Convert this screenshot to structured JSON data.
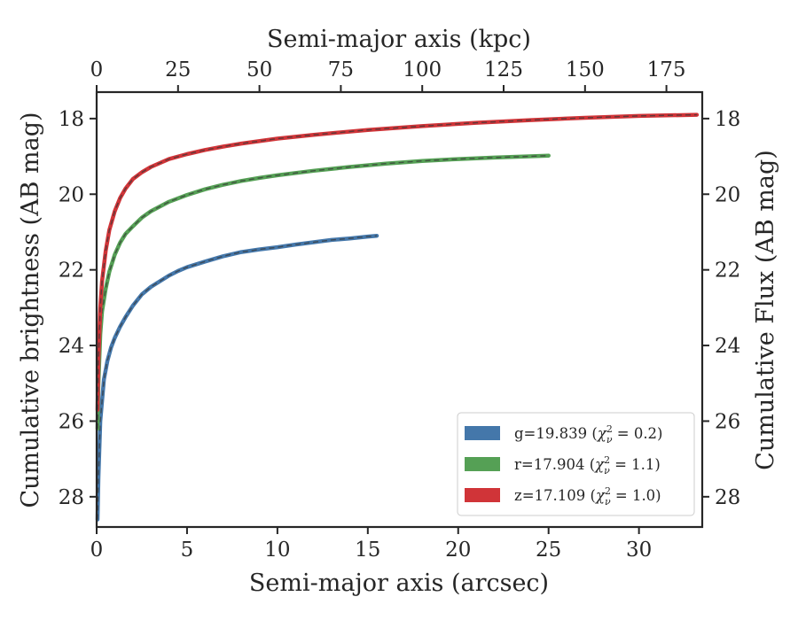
{
  "chart_data": {
    "type": "line",
    "xlabel": "Semi-major axis (arcsec)",
    "ylabel": "Cumulative brightness (AB mag)",
    "x2label": "Semi-major axis (kpc)",
    "y2label": "Cumulative Flux (AB mag)",
    "xlim": [
      0,
      33.5
    ],
    "ylim": [
      28.8,
      17.3
    ],
    "y_inverted": true,
    "x2lim": [
      0,
      186
    ],
    "xticks": [
      "0",
      "5",
      "10",
      "15",
      "20",
      "25",
      "30"
    ],
    "x2ticks": [
      "0",
      "25",
      "50",
      "75",
      "100",
      "125",
      "150",
      "175"
    ],
    "yticks": [
      "18",
      "20",
      "22",
      "24",
      "26",
      "28"
    ],
    "grid": false,
    "legend_position": "lower-right",
    "series": [
      {
        "name": "g=19.839 (χ²ν = 0.2)",
        "legend_main": "g=19.839 (",
        "legend_sup": "2",
        "legend_sub": "ν",
        "legend_tail": " = 0.2)",
        "color": "#4477aa",
        "x": [
          0.05,
          0.1,
          0.2,
          0.4,
          0.6,
          0.8,
          1,
          1.3,
          1.6,
          2,
          2.5,
          3,
          3.5,
          4,
          4.5,
          5,
          6,
          7,
          8,
          9,
          10,
          11,
          12,
          13,
          14,
          15,
          15.5
        ],
        "y": [
          28.6,
          27.5,
          26.0,
          24.9,
          24.4,
          24.05,
          23.8,
          23.5,
          23.25,
          22.95,
          22.65,
          22.45,
          22.3,
          22.15,
          22.03,
          21.93,
          21.78,
          21.64,
          21.53,
          21.46,
          21.4,
          21.33,
          21.27,
          21.21,
          21.17,
          21.12,
          21.1
        ]
      },
      {
        "name": "r=17.904 (χ²ν = 1.1)",
        "legend_main": "r=17.904 (",
        "legend_sup": "2",
        "legend_sub": "ν",
        "legend_tail": " = 1.1)",
        "color": "#55a055",
        "x": [
          0.05,
          0.1,
          0.2,
          0.3,
          0.5,
          0.7,
          1,
          1.3,
          1.6,
          2,
          2.5,
          3,
          4,
          5,
          6,
          7,
          8,
          9,
          10,
          12,
          14,
          16,
          18,
          20,
          22,
          25
        ],
        "y": [
          26.2,
          25.0,
          23.7,
          23.1,
          22.5,
          22.05,
          21.6,
          21.28,
          21.05,
          20.85,
          20.62,
          20.45,
          20.2,
          20.02,
          19.87,
          19.75,
          19.65,
          19.57,
          19.5,
          19.38,
          19.28,
          19.19,
          19.12,
          19.07,
          19.03,
          18.98
        ]
      },
      {
        "name": "z=17.109 (χ²ν = 1.0)",
        "legend_main": "z=17.109 (",
        "legend_sup": "2",
        "legend_sub": "ν",
        "legend_tail": " = 1.0)",
        "color": "#d03438",
        "x": [
          0.05,
          0.1,
          0.2,
          0.3,
          0.5,
          0.7,
          1,
          1.3,
          1.6,
          2,
          2.5,
          3,
          4,
          5,
          6,
          7,
          8,
          10,
          12,
          15,
          18,
          21,
          24,
          27,
          30,
          33.2
        ],
        "y": [
          25.7,
          24.4,
          23.0,
          22.3,
          21.5,
          20.95,
          20.45,
          20.1,
          19.85,
          19.6,
          19.42,
          19.28,
          19.07,
          18.94,
          18.83,
          18.74,
          18.66,
          18.53,
          18.43,
          18.3,
          18.2,
          18.11,
          18.04,
          17.98,
          17.93,
          17.9
        ]
      }
    ]
  }
}
